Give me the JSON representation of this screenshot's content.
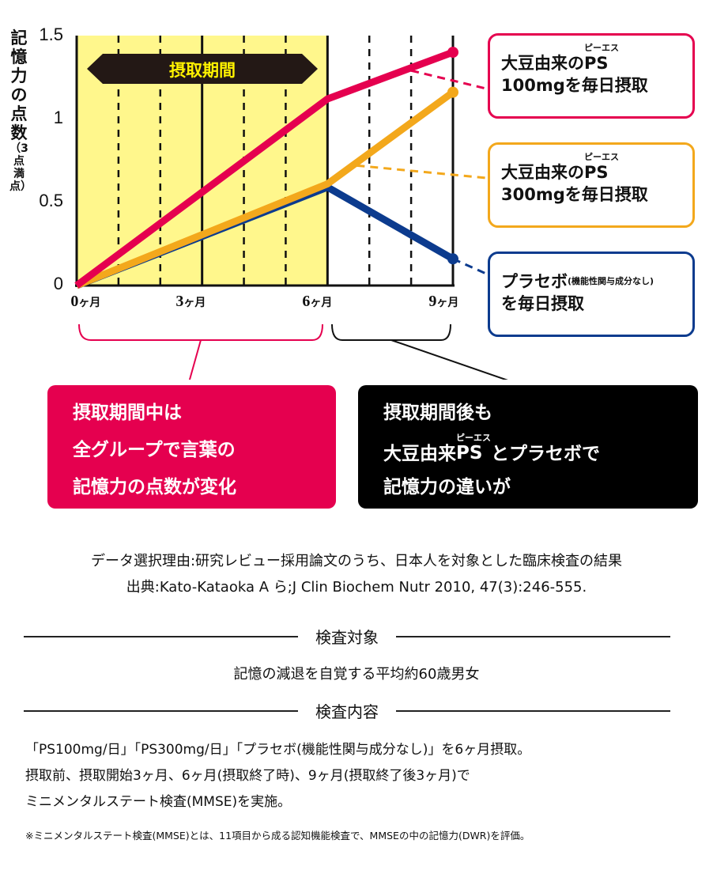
{
  "chart_data": {
    "type": "line",
    "ylabel": "記憶力の点数",
    "ylabel_note": "（3点満点）",
    "ylim": [
      0,
      1.5
    ],
    "yticks": [
      "0",
      "0.5",
      "1",
      "1.5"
    ],
    "x": [
      0,
      6,
      9
    ],
    "xticks": [
      {
        "num": "0",
        "unit": "ヶ月"
      },
      {
        "num": "3",
        "unit": "ヶ月"
      },
      {
        "num": "6",
        "unit": "ヶ月"
      },
      {
        "num": "9",
        "unit": "ヶ月"
      }
    ],
    "shaded_period_label": "摂取期間",
    "shaded_period": [
      0,
      6
    ],
    "series": [
      {
        "name": "大豆由来のPS 100mgを毎日摂取",
        "color": "#e5004f",
        "values": [
          0,
          1.12,
          1.4
        ]
      },
      {
        "name": "大豆由来のPS 300mgを毎日摂取",
        "color": "#f3a81c",
        "values": [
          0,
          0.61,
          1.16
        ]
      },
      {
        "name": "プラセボ（機能性関与成分なし）を毎日摂取",
        "color": "#0c3b8e",
        "values": [
          0,
          0.59,
          0.16
        ]
      }
    ]
  },
  "legend": {
    "ps100": {
      "line1": "大豆由来の",
      "ps": "PS",
      "ruby": "ピーエス",
      "line2": "100mgを毎日摂取"
    },
    "ps300": {
      "line1": "大豆由来の",
      "ps": "PS",
      "ruby": "ピーエス",
      "line2": "300mgを毎日摂取"
    },
    "placebo": {
      "line1": "プラセボ",
      "note": "(機能性関与成分なし)",
      "line2": "を毎日摂取"
    }
  },
  "callouts": {
    "left": [
      "摂取期間中は",
      "全グループで言葉の",
      "記憶力の点数が変化"
    ],
    "right": {
      "line1": "摂取期間後も",
      "line2a": "大豆由来",
      "ps": "PS",
      "ruby": "ピーエス",
      "line2b": "とプラセボで",
      "line3": "記憶力の違いが"
    }
  },
  "notes": {
    "reason": "データ選択理由:研究レビュー採用論文のうち、日本人を対象とした臨床検査の結果",
    "source": "出典:Kato-Kataoka A ら;J Clin Biochem Nutr 2010, 47(3):246-555.",
    "subjects_title": "検査対象",
    "subjects": "記憶の減退を自覚する平均約60歳男女",
    "content_title": "検査内容",
    "content": [
      "「PS100mg/日」「PS300mg/日」「プラセボ(機能性関与成分なし)」を6ヶ月摂取。",
      "摂取前、摂取開始3ヶ月、6ヶ月(摂取終了時)、9ヶ月(摂取終了後3ヶ月)で",
      "ミニメンタルステート検査(MMSE)を実施。"
    ],
    "footnote": "※ミニメンタルステート検査(MMSE)とは、11項目から成る認知機能検査で、MMSEの中の記憶力(DWR)を評価。"
  }
}
